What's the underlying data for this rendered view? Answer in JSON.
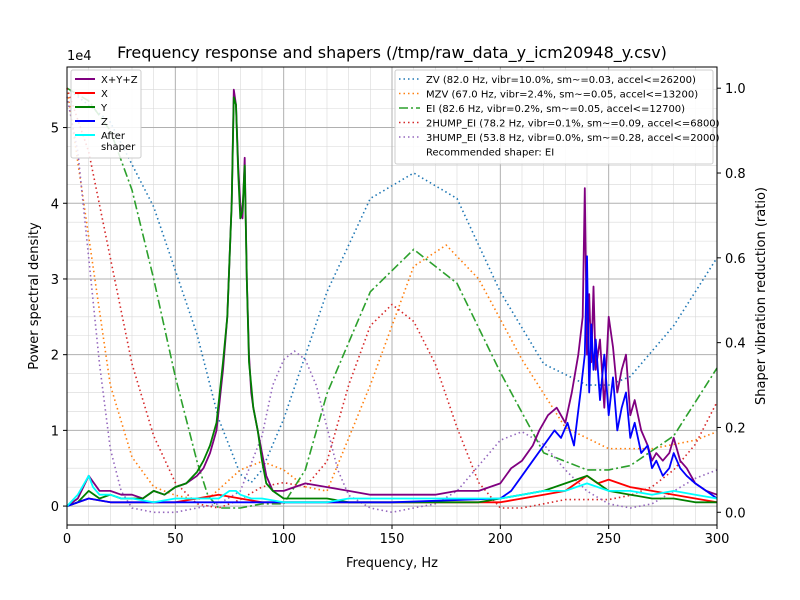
{
  "chart_data": {
    "type": "line",
    "title": "Frequency response and shapers (/tmp/raw_data_y_icm20948_y.csv)",
    "xlabel": "Frequency, Hz",
    "ylabel": "Power spectral density",
    "y2label": "Shaper vibration reduction (ratio)",
    "y_offset_label": "1e4",
    "xlim": [
      0,
      300
    ],
    "ylim": [
      -0.25,
      5.8
    ],
    "y2lim": [
      -0.03,
      1.05
    ],
    "xticks": [
      "0",
      "50",
      "100",
      "150",
      "200",
      "250",
      "300"
    ],
    "yticks": [
      "0",
      "1",
      "2",
      "3",
      "4",
      "5"
    ],
    "y2ticks": [
      "0.0",
      "0.2",
      "0.4",
      "0.6",
      "0.8",
      "1.0"
    ],
    "grid": true,
    "legend_psd": {
      "placement": "top-left"
    },
    "legend_shapers": {
      "placement": "top-right"
    },
    "psd_series": [
      {
        "name": "X+Y+Z",
        "color": "#800080",
        "x": [
          0,
          5,
          10,
          15,
          20,
          25,
          30,
          35,
          40,
          45,
          50,
          55,
          60,
          63,
          66,
          69,
          72,
          74,
          76,
          77,
          78,
          79,
          80,
          81,
          82,
          83,
          84,
          85,
          86,
          88,
          90,
          92,
          95,
          100,
          105,
          110,
          120,
          130,
          140,
          150,
          160,
          170,
          180,
          190,
          200,
          205,
          210,
          215,
          218,
          222,
          226,
          230,
          233,
          236,
          238,
          239,
          240,
          241,
          242,
          243,
          244,
          246,
          248,
          250,
          252,
          254,
          256,
          258,
          260,
          262,
          265,
          268,
          270,
          272,
          275,
          278,
          280,
          283,
          286,
          290,
          295,
          300
        ],
        "y": [
          0,
          0.1,
          0.4,
          0.2,
          0.2,
          0.15,
          0.15,
          0.1,
          0.2,
          0.15,
          0.25,
          0.3,
          0.4,
          0.5,
          0.7,
          1.0,
          1.8,
          2.5,
          4.0,
          5.5,
          5.3,
          4.5,
          4.0,
          3.8,
          4.6,
          3.0,
          2.0,
          1.5,
          1.3,
          1.0,
          0.7,
          0.4,
          0.2,
          0.2,
          0.25,
          0.3,
          0.25,
          0.2,
          0.15,
          0.15,
          0.15,
          0.15,
          0.2,
          0.2,
          0.3,
          0.5,
          0.6,
          0.8,
          1.0,
          1.2,
          1.3,
          1.1,
          1.5,
          2.0,
          2.5,
          4.2,
          2.0,
          2.8,
          1.9,
          2.9,
          1.8,
          2.2,
          1.3,
          2.5,
          2.1,
          1.5,
          1.8,
          2.0,
          1.2,
          1.4,
          1.0,
          0.8,
          0.6,
          0.7,
          0.6,
          0.7,
          0.9,
          0.6,
          0.5,
          0.3,
          0.2,
          0.15
        ]
      },
      {
        "name": "X",
        "color": "#ff0000",
        "x": [
          0,
          10,
          20,
          30,
          50,
          60,
          70,
          80,
          90,
          100,
          150,
          200,
          210,
          220,
          230,
          240,
          245,
          250,
          260,
          270,
          280,
          290,
          300
        ],
        "y": [
          0,
          0.1,
          0.05,
          0.05,
          0.05,
          0.1,
          0.15,
          0.1,
          0.05,
          0.05,
          0.05,
          0.05,
          0.1,
          0.15,
          0.2,
          0.4,
          0.3,
          0.35,
          0.25,
          0.2,
          0.15,
          0.1,
          0.05
        ]
      },
      {
        "name": "Y",
        "color": "#008000",
        "x": [
          0,
          5,
          10,
          15,
          20,
          25,
          30,
          35,
          40,
          45,
          50,
          55,
          60,
          63,
          66,
          69,
          72,
          74,
          76,
          77,
          78,
          79,
          80,
          81,
          82,
          83,
          84,
          85,
          86,
          88,
          90,
          92,
          95,
          100,
          110,
          120,
          130,
          140,
          150,
          160,
          170,
          180,
          190,
          200,
          210,
          220,
          230,
          240,
          250,
          260,
          270,
          280,
          290,
          300
        ],
        "y": [
          0,
          0.05,
          0.2,
          0.1,
          0.15,
          0.1,
          0.1,
          0.1,
          0.2,
          0.15,
          0.25,
          0.3,
          0.45,
          0.6,
          0.8,
          1.1,
          1.9,
          2.5,
          4.0,
          5.4,
          5.3,
          4.4,
          3.8,
          3.9,
          4.5,
          3.0,
          1.9,
          1.6,
          1.3,
          1.0,
          0.6,
          0.3,
          0.2,
          0.1,
          0.1,
          0.1,
          0.05,
          0.05,
          0.05,
          0.05,
          0.05,
          0.05,
          0.05,
          0.1,
          0.15,
          0.2,
          0.3,
          0.4,
          0.2,
          0.15,
          0.1,
          0.1,
          0.05,
          0.05
        ]
      },
      {
        "name": "Z",
        "color": "#0000ff",
        "x": [
          0,
          10,
          20,
          30,
          40,
          50,
          60,
          70,
          80,
          90,
          100,
          150,
          200,
          205,
          210,
          215,
          220,
          225,
          228,
          231,
          234,
          237,
          239,
          240,
          241,
          242,
          243,
          244,
          246,
          248,
          250,
          252,
          254,
          256,
          258,
          260,
          262,
          265,
          268,
          270,
          272,
          275,
          278,
          280,
          283,
          286,
          290,
          295,
          300
        ],
        "y": [
          0,
          0.1,
          0.05,
          0.05,
          0.05,
          0.05,
          0.05,
          0.05,
          0.05,
          0.05,
          0.05,
          0.05,
          0.1,
          0.2,
          0.4,
          0.6,
          0.8,
          1.0,
          0.9,
          1.1,
          0.8,
          1.5,
          2.0,
          3.3,
          1.5,
          2.4,
          1.8,
          2.2,
          1.4,
          2.0,
          1.2,
          1.7,
          1.0,
          1.3,
          1.5,
          0.9,
          1.1,
          0.7,
          0.8,
          0.5,
          0.6,
          0.4,
          0.5,
          0.7,
          0.5,
          0.4,
          0.3,
          0.2,
          0.1
        ]
      },
      {
        "name": "After\nshaper",
        "color": "#00ffff",
        "x": [
          0,
          5,
          8,
          10,
          12,
          15,
          20,
          25,
          30,
          40,
          50,
          60,
          70,
          75,
          78,
          80,
          85,
          90,
          100,
          110,
          120,
          130,
          140,
          150,
          160,
          170,
          180,
          190,
          200,
          210,
          220,
          230,
          240,
          250,
          260,
          270,
          280,
          290,
          300
        ],
        "y": [
          0,
          0.15,
          0.3,
          0.4,
          0.25,
          0.15,
          0.15,
          0.1,
          0.1,
          0.05,
          0.1,
          0.1,
          0.1,
          0.2,
          0.2,
          0.15,
          0.1,
          0.1,
          0.05,
          0.05,
          0.05,
          0.1,
          0.1,
          0.1,
          0.1,
          0.1,
          0.1,
          0.1,
          0.1,
          0.15,
          0.2,
          0.2,
          0.3,
          0.2,
          0.2,
          0.15,
          0.2,
          0.15,
          0.1
        ]
      }
    ],
    "shaper_series": [
      {
        "name": "ZV (82.0 Hz, vibr=10.0%, sm~=0.03, accel<=26200)",
        "color": "#1f77b4",
        "dash": "dotted",
        "x": [
          0,
          20,
          40,
          60,
          70,
          80,
          85,
          90,
          100,
          120,
          140,
          160,
          180,
          200,
          220,
          240,
          250,
          260,
          280,
          300
        ],
        "y": [
          1.0,
          0.92,
          0.72,
          0.42,
          0.22,
          0.09,
          0.07,
          0.1,
          0.22,
          0.52,
          0.74,
          0.8,
          0.74,
          0.52,
          0.35,
          0.3,
          0.3,
          0.32,
          0.44,
          0.6
        ]
      },
      {
        "name": "MZV (67.0 Hz, vibr=2.4%, sm~=0.05, accel<=13200)",
        "color": "#ff7f0e",
        "dash": "dotted",
        "x": [
          0,
          10,
          20,
          30,
          40,
          50,
          60,
          67,
          80,
          90,
          100,
          110,
          120,
          140,
          160,
          175,
          190,
          210,
          230,
          250,
          270,
          290,
          300
        ],
        "y": [
          1.0,
          0.65,
          0.3,
          0.13,
          0.06,
          0.04,
          0.03,
          0.04,
          0.1,
          0.12,
          0.1,
          0.06,
          0.05,
          0.3,
          0.58,
          0.63,
          0.55,
          0.36,
          0.2,
          0.15,
          0.15,
          0.17,
          0.19
        ]
      },
      {
        "name": "EI (82.6 Hz, vibr=0.2%, sm~=0.05, accel<=12700)",
        "color": "#2ca02c",
        "dash": "dashdot",
        "x": [
          0,
          10,
          20,
          30,
          40,
          50,
          60,
          65,
          70,
          80,
          90,
          100,
          110,
          120,
          140,
          160,
          180,
          200,
          220,
          240,
          250,
          260,
          280,
          300
        ],
        "y": [
          1.0,
          0.97,
          0.9,
          0.76,
          0.55,
          0.32,
          0.12,
          0.04,
          0.01,
          0.01,
          0.02,
          0.02,
          0.1,
          0.28,
          0.52,
          0.62,
          0.54,
          0.33,
          0.14,
          0.1,
          0.1,
          0.11,
          0.18,
          0.34
        ]
      },
      {
        "name": "2HUMP_EI (78.2 Hz, vibr=0.1%, sm~=0.09, accel<=6800)",
        "color": "#d62728",
        "dash": "dotted",
        "x": [
          0,
          10,
          20,
          30,
          40,
          50,
          60,
          70,
          80,
          90,
          100,
          110,
          120,
          130,
          140,
          150,
          160,
          170,
          180,
          190,
          200,
          210,
          220,
          230,
          240,
          250,
          260,
          270,
          280,
          290,
          300
        ],
        "y": [
          1.0,
          0.85,
          0.6,
          0.35,
          0.18,
          0.07,
          0.02,
          0.01,
          0.03,
          0.06,
          0.07,
          0.06,
          0.12,
          0.3,
          0.44,
          0.49,
          0.45,
          0.35,
          0.2,
          0.07,
          0.01,
          0.01,
          0.02,
          0.03,
          0.03,
          0.03,
          0.04,
          0.06,
          0.1,
          0.16,
          0.26
        ]
      },
      {
        "name": "3HUMP_EI (53.8 Hz, vibr=0.0%, sm~=0.28, accel<=2000)",
        "color": "#9467bd",
        "dash": "dotted",
        "x": [
          0,
          5,
          10,
          15,
          20,
          25,
          30,
          40,
          50,
          60,
          70,
          80,
          90,
          95,
          100,
          105,
          110,
          115,
          120,
          125,
          130,
          140,
          150,
          160,
          170,
          180,
          190,
          200,
          210,
          220,
          230,
          240,
          250,
          260,
          270,
          280,
          290,
          300
        ],
        "y": [
          0.98,
          0.85,
          0.6,
          0.35,
          0.15,
          0.05,
          0.01,
          0.0,
          0.0,
          0.01,
          0.02,
          0.05,
          0.18,
          0.3,
          0.36,
          0.38,
          0.36,
          0.3,
          0.2,
          0.1,
          0.04,
          0.01,
          0.0,
          0.01,
          0.02,
          0.05,
          0.11,
          0.17,
          0.19,
          0.16,
          0.1,
          0.05,
          0.02,
          0.01,
          0.02,
          0.05,
          0.08,
          0.1
        ]
      }
    ],
    "recommended_text": "Recommended shaper: EI"
  }
}
